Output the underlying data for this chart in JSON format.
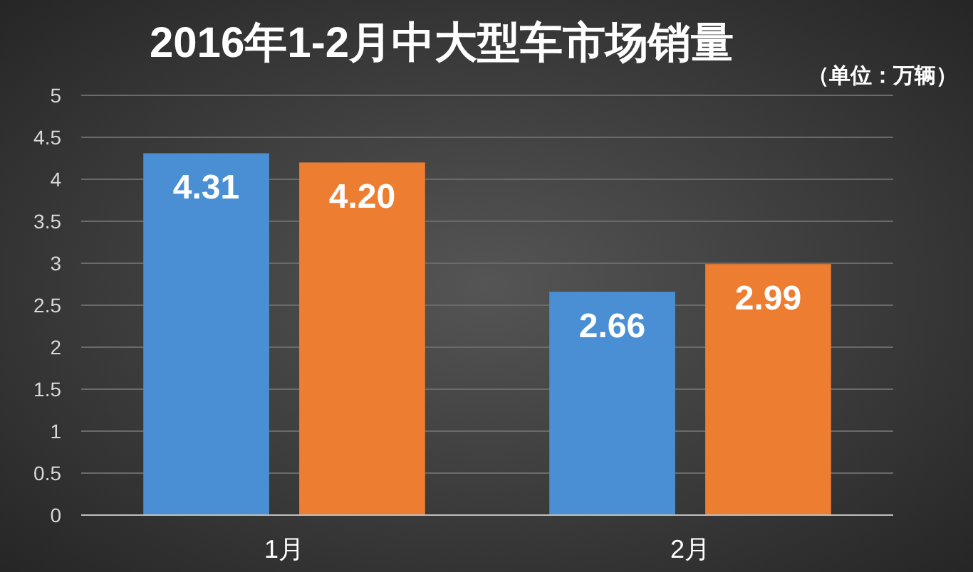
{
  "chart_data": {
    "type": "bar",
    "title": "2016年1-2月中大型车市场销量",
    "annotations": [
      "（单位：万辆）"
    ],
    "categories": [
      "1月",
      "2月"
    ],
    "series": [
      {
        "color": "#4a8fd3",
        "values": [
          4.31,
          2.66
        ],
        "value_labels": [
          "4.31",
          "2.66"
        ]
      },
      {
        "color": "#ed7d31",
        "values": [
          4.2,
          2.99
        ],
        "value_labels": [
          "4.20",
          "2.99"
        ]
      }
    ],
    "ylim": [
      0,
      5
    ],
    "yticks": [
      0,
      0.5,
      1,
      1.5,
      2,
      2.5,
      3,
      3.5,
      4,
      4.5,
      5
    ],
    "grid": "y"
  }
}
